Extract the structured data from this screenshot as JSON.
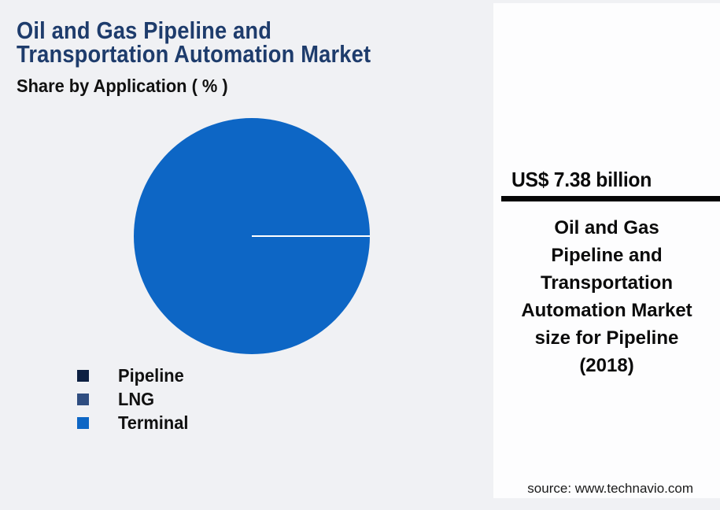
{
  "header": {
    "title": "Oil and Gas Pipeline and\nTransportation Automation Market",
    "subtitle": "Share by Application ( % )"
  },
  "chart_data": {
    "type": "pie",
    "title": "Oil and Gas Pipeline and Transportation Automation Market",
    "subtitle": "Share by Application ( % )",
    "categories": [
      "Pipeline",
      "LNG",
      "Terminal"
    ],
    "values": [
      100,
      0,
      0
    ],
    "unit": "%",
    "legend_position": "bottom-left",
    "legend_colors": [
      "#0d2042",
      "#2f4d80",
      "#0d66c5"
    ],
    "rendered_pie_color": "#0d66c5",
    "slice_divider": {
      "angle_deg": 0,
      "color": "#ffffff"
    }
  },
  "legend": {
    "items": [
      {
        "label": "Pipeline",
        "color": "#0d2042"
      },
      {
        "label": "LNG",
        "color": "#2f4d80"
      },
      {
        "label": "Terminal",
        "color": "#0d66c5"
      }
    ]
  },
  "panel": {
    "value": "US$ 7.38 billion",
    "description": "Oil and Gas\nPipeline and\nTransportation\nAutomation Market\nsize for Pipeline\n(2018)",
    "source": "source: www.technavio.com"
  },
  "colors": {
    "background": "#f0f1f4",
    "panel_background": "#fdfdfe",
    "title_text": "#1e3c6c",
    "body_text": "#111111",
    "divider_bar": "#070707",
    "pie_fill": "#0d66c5"
  }
}
